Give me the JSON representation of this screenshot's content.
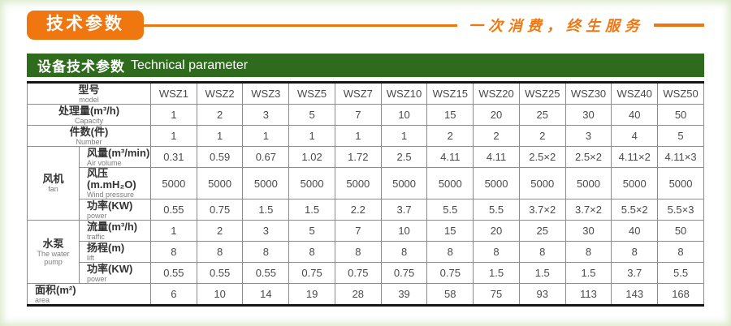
{
  "banner": {
    "title": "技术参数",
    "slogan": "一次消费，终生服务"
  },
  "section_header": {
    "zh": "设备技术参数",
    "en": "Technical parameter"
  },
  "table": {
    "corner": {
      "zh": "型号",
      "en": "model"
    },
    "models": [
      "WSZ1",
      "WSZ2",
      "WSZ3",
      "WSZ5",
      "WSZ7",
      "WSZ10",
      "WSZ15",
      "WSZ20",
      "WSZ25",
      "WSZ30",
      "WSZ40",
      "WSZ50"
    ],
    "groups": {
      "fan": {
        "zh": "风机",
        "en": "fan"
      },
      "pump": {
        "zh": "水泵",
        "en": "The water pump"
      }
    },
    "rows": [
      {
        "zh": "处理量(m³/h)",
        "en": "Capacity",
        "values": [
          "1",
          "2",
          "3",
          "5",
          "7",
          "10",
          "15",
          "20",
          "25",
          "30",
          "40",
          "50"
        ]
      },
      {
        "zh": "件数(件)",
        "en": "Number",
        "values": [
          "1",
          "1",
          "1",
          "1",
          "1",
          "1",
          "2",
          "2",
          "2",
          "3",
          "4",
          "5"
        ]
      },
      {
        "zh": "风量(m³/min)",
        "en": "Air volume",
        "values": [
          "0.31",
          "0.59",
          "0.67",
          "1.02",
          "1.72",
          "2.5",
          "4.11",
          "4.11",
          "2.5×2",
          "2.5×2",
          "4.11×2",
          "4.11×3"
        ]
      },
      {
        "zh": "风压(m.mH₂O)",
        "en": "Wind pressure",
        "values": [
          "5000",
          "5000",
          "5000",
          "5000",
          "5000",
          "5000",
          "5000",
          "5000",
          "5000",
          "5000",
          "5000",
          "5000"
        ]
      },
      {
        "zh": "功率(KW)",
        "en": "power",
        "values": [
          "0.55",
          "0.75",
          "1.5",
          "1.5",
          "2.2",
          "3.7",
          "5.5",
          "5.5",
          "3.7×2",
          "3.7×2",
          "5.5×2",
          "5.5×3"
        ]
      },
      {
        "zh": "流量(m³/h)",
        "en": "traffic",
        "values": [
          "1",
          "2",
          "3",
          "5",
          "7",
          "10",
          "15",
          "20",
          "25",
          "30",
          "40",
          "50"
        ]
      },
      {
        "zh": "扬程(m)",
        "en": "lift",
        "values": [
          "8",
          "8",
          "8",
          "8",
          "8",
          "8",
          "8",
          "8",
          "8",
          "8",
          "8",
          "8"
        ]
      },
      {
        "zh": "功率(KW)",
        "en": "power",
        "values": [
          "0.55",
          "0.55",
          "0.55",
          "0.75",
          "0.75",
          "0.75",
          "0.75",
          "1.5",
          "1.5",
          "1.5",
          "3.7",
          "5.5"
        ]
      },
      {
        "zh": "面积(m²)",
        "en": "area",
        "values": [
          "6",
          "10",
          "14",
          "19",
          "28",
          "39",
          "58",
          "75",
          "93",
          "113",
          "143",
          "168"
        ]
      }
    ]
  }
}
